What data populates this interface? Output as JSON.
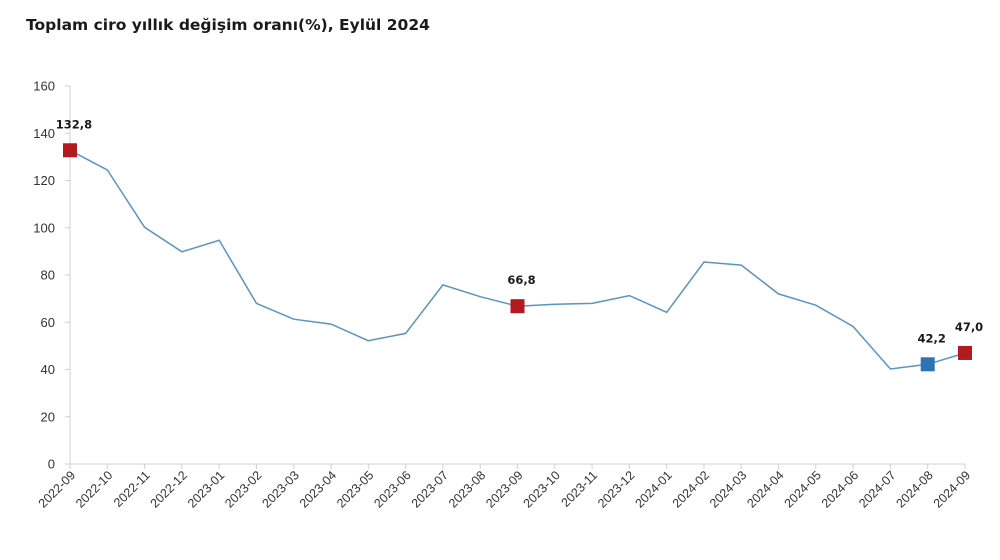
{
  "title": "Toplam ciro yıllık değişim oranı(%), Eylül 2024",
  "chart_data": {
    "type": "line",
    "title": "Toplam ciro yıllık değişim oranı(%), Eylül 2024",
    "xlabel": "",
    "ylabel": "",
    "ylim": [
      0,
      160
    ],
    "yticks": [
      "0",
      "20",
      "40",
      "60",
      "80",
      "100",
      "120",
      "140",
      "160"
    ],
    "grid": false,
    "legend": "none",
    "categories": [
      "2022-09",
      "2022-10",
      "2022-11",
      "2022-12",
      "2023-01",
      "2023-02",
      "2023-03",
      "2023-04",
      "2023-05",
      "2023-06",
      "2023-07",
      "2023-08",
      "2023-09",
      "2023-10",
      "2023-11",
      "2023-12",
      "2024-01",
      "2024-02",
      "2024-03",
      "2024-04",
      "2024-05",
      "2024-06",
      "2024-07",
      "2024-08",
      "2024-09"
    ],
    "series": [
      {
        "values": [
          132.8,
          124.5,
          100.2,
          89.8,
          94.7,
          68.0,
          61.3,
          59.2,
          52.2,
          55.3,
          75.8,
          70.8,
          66.8,
          67.6,
          68.0,
          71.3,
          64.2,
          85.5,
          84.2,
          72.0,
          67.2,
          58.2,
          40.2,
          42.2,
          47.0
        ],
        "color": "#5b93c2"
      }
    ],
    "highlights": [
      {
        "index": 0,
        "label": "132,8",
        "color": "#b21a1f"
      },
      {
        "index": 12,
        "label": "66,8",
        "color": "#b21a1f"
      },
      {
        "index": 23,
        "label": "42,2",
        "color": "#2e74b5"
      },
      {
        "index": 24,
        "label": "47,0",
        "color": "#b21a1f"
      }
    ]
  }
}
